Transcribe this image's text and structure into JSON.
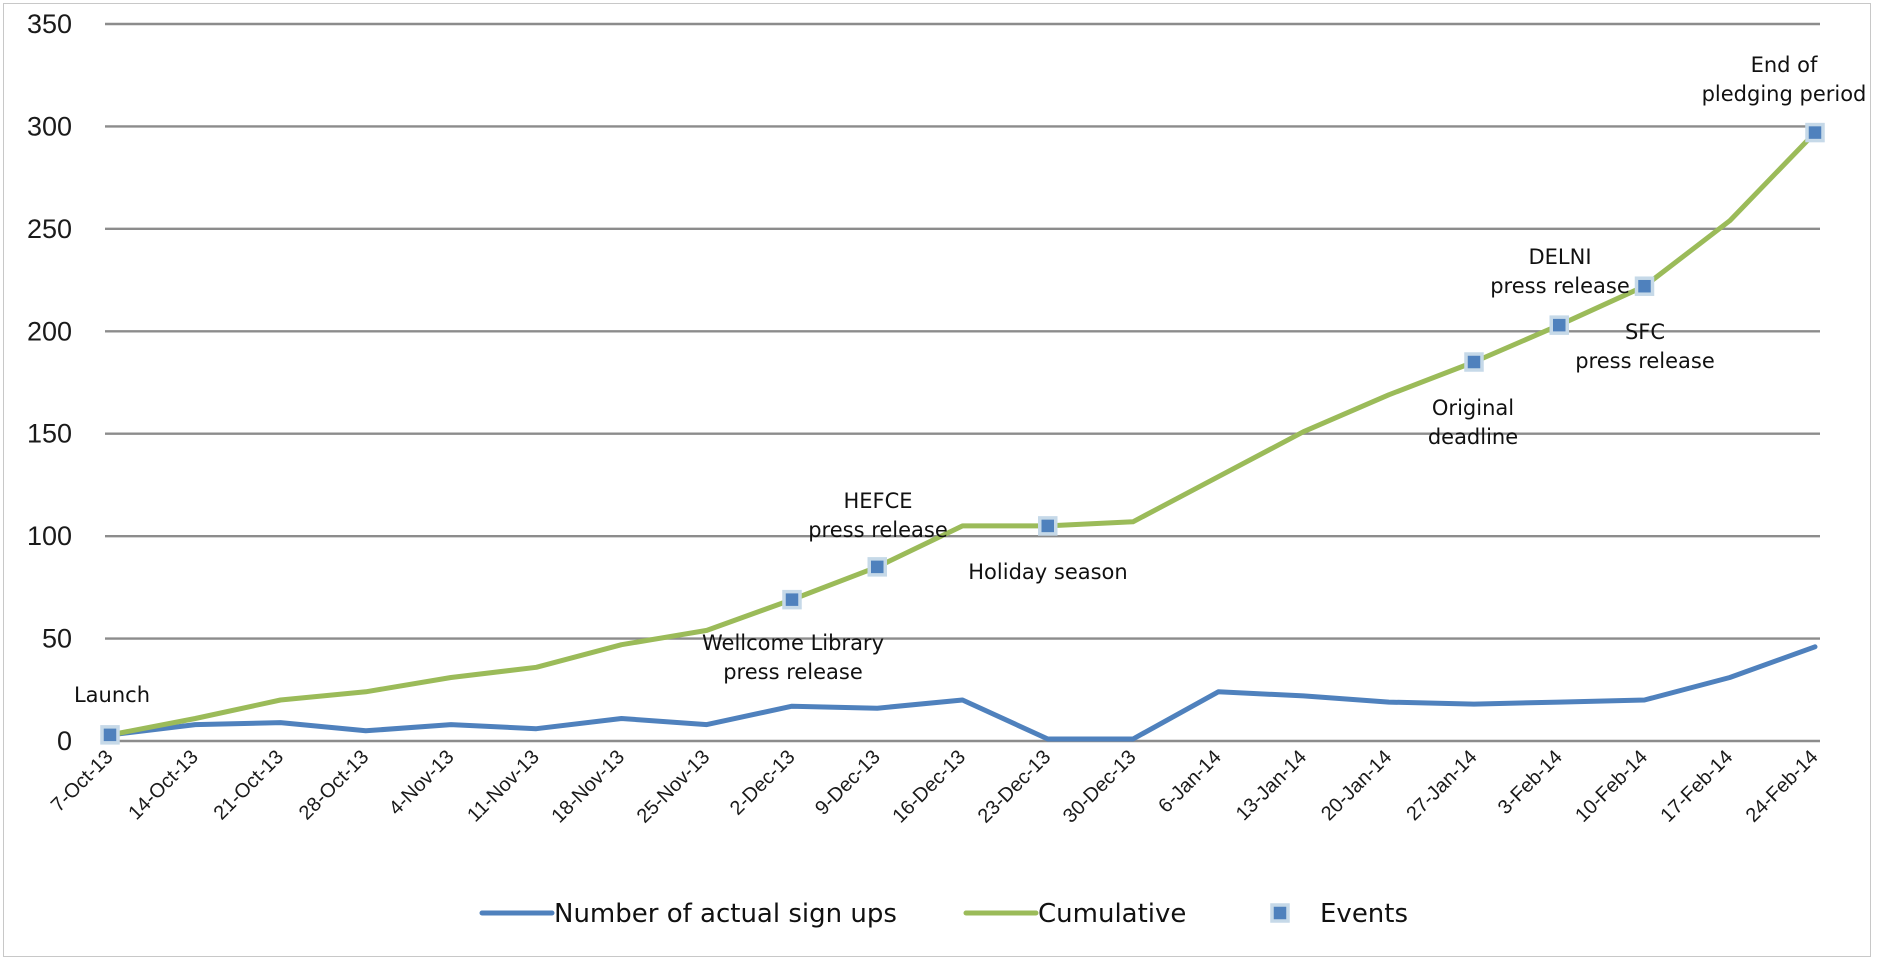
{
  "chart_data": {
    "type": "line",
    "title": "",
    "xlabel": "",
    "ylabel": "",
    "ylim": [
      0,
      350
    ],
    "y_ticks": [
      0,
      50,
      100,
      150,
      200,
      250,
      300,
      350
    ],
    "grid": "horizontal",
    "legend_position": "bottom",
    "categories": [
      "7-Oct-13",
      "14-Oct-13",
      "21-Oct-13",
      "28-Oct-13",
      "4-Nov-13",
      "11-Nov-13",
      "18-Nov-13",
      "25-Nov-13",
      "2-Dec-13",
      "9-Dec-13",
      "16-Dec-13",
      "23-Dec-13",
      "30-Dec-13",
      "6-Jan-14",
      "13-Jan-14",
      "20-Jan-14",
      "27-Jan-14",
      "3-Feb-14",
      "10-Feb-14",
      "17-Feb-14",
      "24-Feb-14"
    ],
    "series": [
      {
        "name": "Number of actual sign ups",
        "color": "#4f81bd",
        "values": [
          3,
          8,
          9,
          5,
          8,
          6,
          11,
          8,
          17,
          16,
          20,
          1,
          1,
          24,
          22,
          19,
          18,
          19,
          20,
          31,
          46
        ]
      },
      {
        "name": "Cumulative",
        "color": "#9bbb59",
        "values": [
          3,
          11,
          20,
          24,
          31,
          36,
          47,
          54,
          69,
          85,
          105,
          105,
          107,
          129,
          151,
          169,
          185,
          203,
          222,
          254,
          297
        ]
      }
    ],
    "events": {
      "name": "Events",
      "marker_color": "#4f81bd",
      "marker_border": "#c6d9e8",
      "points": [
        {
          "category": "7-Oct-13",
          "value": 3,
          "label": [
            "Launch"
          ]
        },
        {
          "category": "2-Dec-13",
          "value": 69,
          "label": [
            "Wellcome Library",
            "press release"
          ]
        },
        {
          "category": "9-Dec-13",
          "value": 85,
          "label": [
            "HEFCE",
            "press release"
          ]
        },
        {
          "category": "23-Dec-13",
          "value": 105,
          "label": [
            "Holiday season"
          ]
        },
        {
          "category": "27-Jan-14",
          "value": 185,
          "label": [
            "Original",
            "deadline"
          ]
        },
        {
          "category": "3-Feb-14",
          "value": 203,
          "label": [
            "DELNI",
            "press release"
          ]
        },
        {
          "category": "10-Feb-14",
          "value": 222,
          "label": [
            "SFC",
            "press release"
          ]
        },
        {
          "category": "24-Feb-14",
          "value": 297,
          "label": [
            "End of",
            "pledging period"
          ]
        }
      ]
    }
  }
}
